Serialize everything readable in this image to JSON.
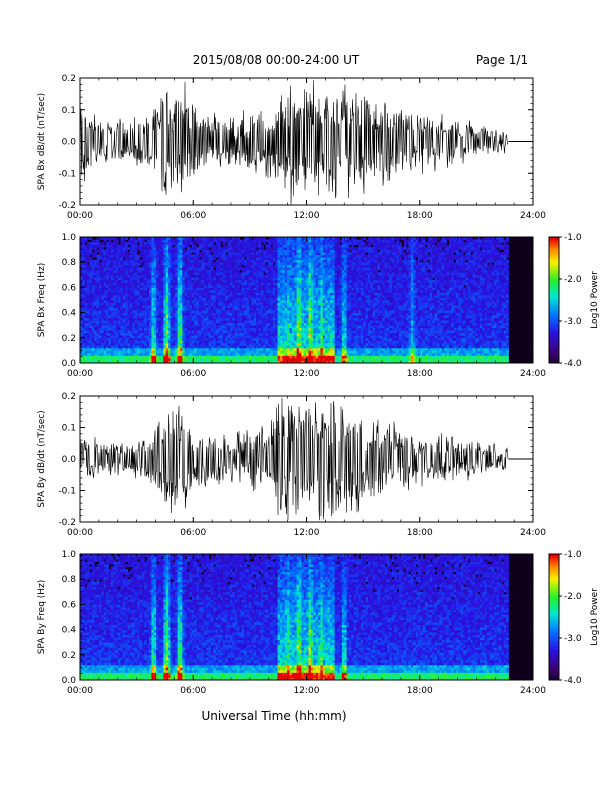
{
  "header": {
    "title": "2015/08/08  00:00-24:00 UT",
    "page": "Page 1/1"
  },
  "xlabel": "Universal Time (hh:mm)",
  "chart_data": [
    {
      "type": "line",
      "name": "bx-timeseries",
      "ylabel": "SPA Bx dB/dt (nT/sec)",
      "xlim": [
        0,
        24
      ],
      "ylim": [
        -0.2,
        0.2
      ],
      "xticks": [
        "00:00",
        "06:00",
        "12:00",
        "18:00",
        "24:00"
      ],
      "yticks": [
        "-0.2",
        "-0.1",
        "0.0",
        "0.1",
        "0.2"
      ],
      "ytick_values": [
        -0.2,
        -0.1,
        0.0,
        0.1,
        0.2
      ],
      "data_end_hour": 22.7,
      "baseline": 0.0,
      "amplitude_envelope": {
        "hours": [
          0,
          1,
          2,
          3,
          4,
          4.6,
          5,
          5.5,
          6,
          7,
          8,
          9,
          10,
          10.5,
          11,
          12,
          13,
          13.5,
          14,
          15,
          16,
          17,
          18,
          19,
          20,
          21,
          22,
          22.7
        ],
        "amp": [
          0.16,
          0.09,
          0.08,
          0.08,
          0.12,
          0.22,
          0.22,
          0.22,
          0.14,
          0.1,
          0.09,
          0.1,
          0.12,
          0.16,
          0.22,
          0.22,
          0.22,
          0.2,
          0.22,
          0.18,
          0.14,
          0.12,
          0.1,
          0.09,
          0.08,
          0.07,
          0.05,
          0.03
        ]
      }
    },
    {
      "type": "heatmap",
      "name": "bx-spectrogram",
      "ylabel": "SPA Bx Freq (Hz)",
      "xlim": [
        0,
        24
      ],
      "ylim": [
        0,
        1
      ],
      "xticks": [
        "00:00",
        "06:00",
        "12:00",
        "18:00",
        "24:00"
      ],
      "yticks": [
        "0.0",
        "0.2",
        "0.4",
        "0.6",
        "0.8",
        "1.0"
      ],
      "ytick_values": [
        0,
        0.2,
        0.4,
        0.6,
        0.8,
        1.0
      ],
      "colorbar": {
        "label": "Log10 Power",
        "min": -4.0,
        "max": -1.0,
        "ticks": [
          "-1.0",
          "-2.0",
          "-3.0",
          "-4.0"
        ]
      },
      "data_end_hour": 22.7,
      "activity_bands": [
        {
          "hour": 3.9,
          "strength": 0.7
        },
        {
          "hour": 4.6,
          "strength": 0.9
        },
        {
          "hour": 5.3,
          "strength": 0.8
        },
        {
          "hour": 11.0,
          "strength": 0.7
        },
        {
          "hour": 11.6,
          "strength": 1.0
        },
        {
          "hour": 12.2,
          "strength": 1.0
        },
        {
          "hour": 12.8,
          "strength": 0.8
        },
        {
          "hour": 14.0,
          "strength": 0.6
        },
        {
          "hour": 17.6,
          "strength": 0.5
        }
      ]
    },
    {
      "type": "line",
      "name": "by-timeseries",
      "ylabel": "SPA By dB/dt (nT/sec)",
      "xlim": [
        0,
        24
      ],
      "ylim": [
        -0.2,
        0.2
      ],
      "xticks": [
        "00:00",
        "06:00",
        "12:00",
        "18:00",
        "24:00"
      ],
      "yticks": [
        "-0.2",
        "-0.1",
        "0.0",
        "0.1",
        "0.2"
      ],
      "ytick_values": [
        -0.2,
        -0.1,
        0.0,
        0.1,
        0.2
      ],
      "data_end_hour": 22.7,
      "baseline": 0.0,
      "amplitude_envelope": {
        "hours": [
          0,
          1,
          2,
          3,
          4,
          4.6,
          5,
          5.5,
          6,
          7,
          8,
          9,
          10,
          10.5,
          11,
          12,
          13,
          13.5,
          14,
          15,
          16,
          17,
          18,
          19,
          20,
          21,
          22,
          22.7
        ],
        "amp": [
          0.09,
          0.07,
          0.07,
          0.07,
          0.12,
          0.22,
          0.22,
          0.2,
          0.12,
          0.09,
          0.09,
          0.1,
          0.13,
          0.22,
          0.22,
          0.22,
          0.22,
          0.2,
          0.22,
          0.16,
          0.14,
          0.12,
          0.1,
          0.09,
          0.08,
          0.07,
          0.06,
          0.03
        ]
      }
    },
    {
      "type": "heatmap",
      "name": "by-spectrogram",
      "ylabel": "SPA By Freq (Hz)",
      "xlim": [
        0,
        24
      ],
      "ylim": [
        0,
        1
      ],
      "xticks": [
        "00:00",
        "06:00",
        "12:00",
        "18:00",
        "24:00"
      ],
      "yticks": [
        "0.0",
        "0.2",
        "0.4",
        "0.6",
        "0.8",
        "1.0"
      ],
      "ytick_values": [
        0,
        0.2,
        0.4,
        0.6,
        0.8,
        1.0
      ],
      "colorbar": {
        "label": "Log10 Power",
        "min": -4.0,
        "max": -1.0,
        "ticks": [
          "-1.0",
          "-2.0",
          "-3.0",
          "-4.0"
        ]
      },
      "data_end_hour": 22.7,
      "activity_bands": [
        {
          "hour": 3.9,
          "strength": 0.7
        },
        {
          "hour": 4.6,
          "strength": 0.9
        },
        {
          "hour": 5.3,
          "strength": 0.8
        },
        {
          "hour": 11.0,
          "strength": 0.8
        },
        {
          "hour": 11.6,
          "strength": 1.0
        },
        {
          "hour": 12.2,
          "strength": 1.0
        },
        {
          "hour": 12.8,
          "strength": 0.8
        },
        {
          "hour": 14.0,
          "strength": 0.6
        }
      ]
    }
  ],
  "colors": {
    "axes": "#000000",
    "trace": "#000000",
    "background": "#ffffff"
  }
}
